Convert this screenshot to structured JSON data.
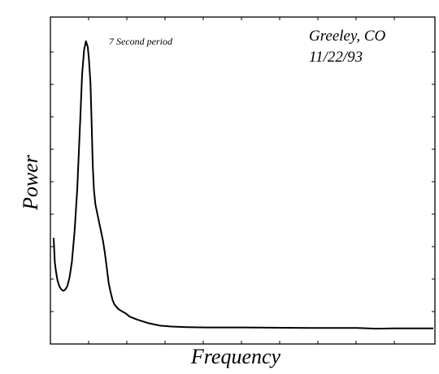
{
  "chart_data": {
    "type": "line",
    "title": "",
    "xlabel": "Frequency",
    "ylabel": "Power",
    "x_ticklabels_shown": false,
    "y_ticklabels_shown": false,
    "grid": false,
    "xlim": [
      0,
      1
    ],
    "ylim": [
      0,
      1
    ],
    "annotations": {
      "peak_label": "7 Second period",
      "location": "Greeley, CO",
      "date": "11/22/93"
    },
    "colors": {
      "line": "#000000",
      "axes": "#000000",
      "background": "#ffffff"
    },
    "series": [
      {
        "x": [
          0.0,
          0.003,
          0.006,
          0.01,
          0.015,
          0.02,
          0.025,
          0.03,
          0.036,
          0.042,
          0.048,
          0.055,
          0.062,
          0.07,
          0.075,
          0.08,
          0.085,
          0.09,
          0.093,
          0.097,
          0.1,
          0.103,
          0.106,
          0.11,
          0.115,
          0.12,
          0.125,
          0.13,
          0.135,
          0.14,
          0.145,
          0.15,
          0.155,
          0.16,
          0.17,
          0.18,
          0.19,
          0.2,
          0.22,
          0.25,
          0.28,
          0.31,
          0.35,
          0.4,
          0.5,
          0.6,
          0.7,
          0.8,
          0.85,
          0.9,
          0.95,
          1.0
        ],
        "y": [
          0.34,
          0.26,
          0.23,
          0.2,
          0.18,
          0.17,
          0.165,
          0.168,
          0.18,
          0.21,
          0.26,
          0.36,
          0.5,
          0.73,
          0.88,
          0.96,
          0.99,
          0.97,
          0.93,
          0.85,
          0.72,
          0.58,
          0.5,
          0.45,
          0.42,
          0.39,
          0.36,
          0.33,
          0.29,
          0.24,
          0.19,
          0.16,
          0.135,
          0.12,
          0.105,
          0.097,
          0.09,
          0.08,
          0.07,
          0.058,
          0.05,
          0.047,
          0.045,
          0.044,
          0.044,
          0.043,
          0.042,
          0.042,
          0.04,
          0.041,
          0.041,
          0.041
        ]
      }
    ]
  }
}
